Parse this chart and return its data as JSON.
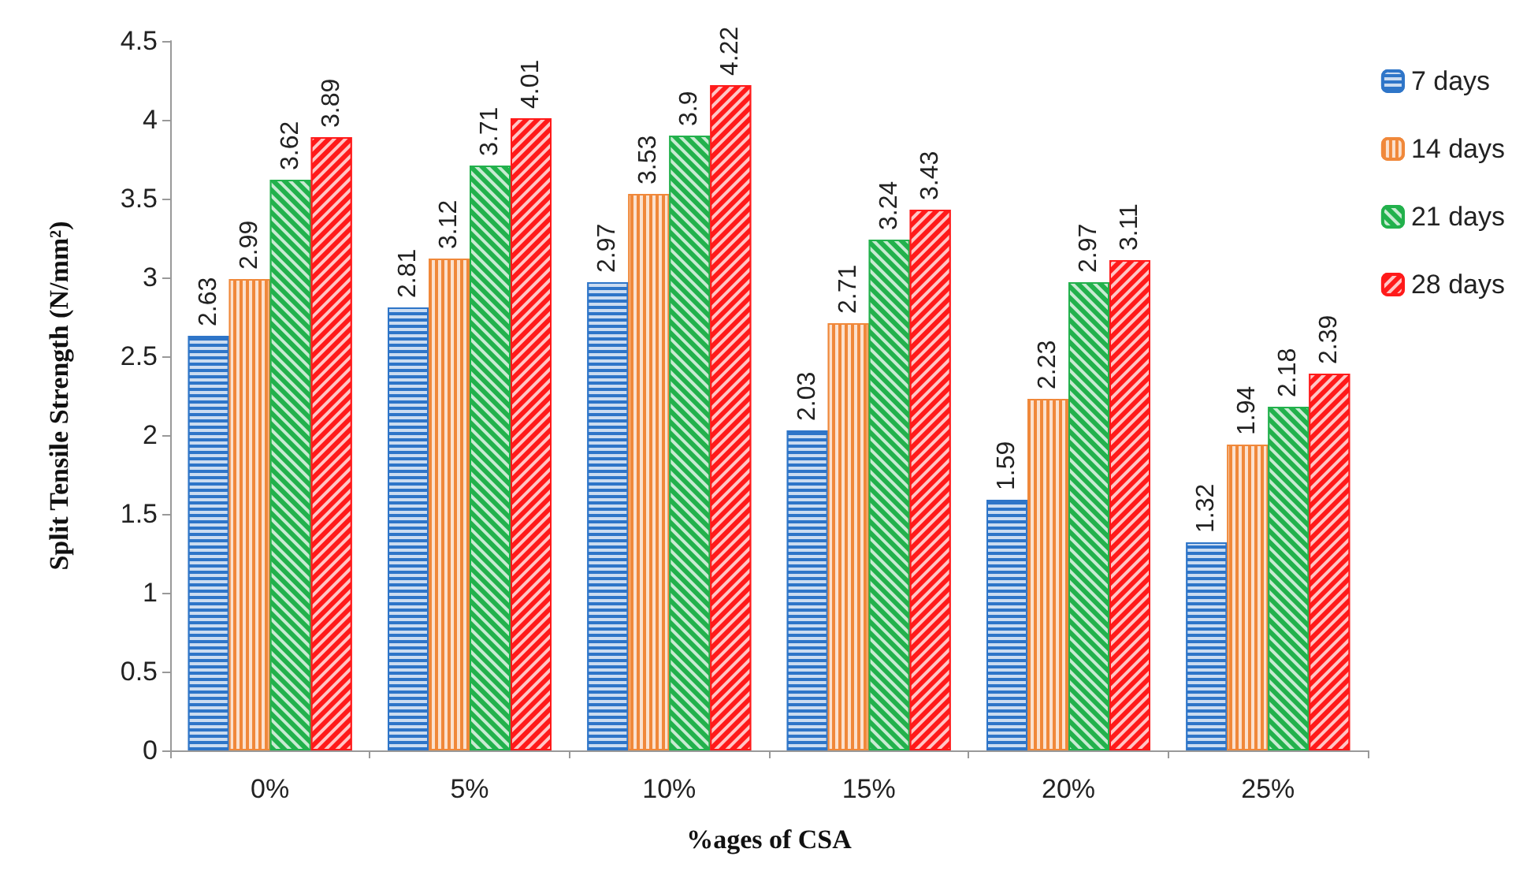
{
  "chart_data": {
    "type": "bar",
    "xlabel": "%ages of CSA",
    "ylabel": "Split Tensile Strength (N/mm²)",
    "categories": [
      "0%",
      "5%",
      "10%",
      "15%",
      "20%",
      "25%"
    ],
    "series": [
      {
        "name": "7 days",
        "color": "#2e75c8",
        "values": [
          2.63,
          2.81,
          2.97,
          2.03,
          1.59,
          1.32
        ]
      },
      {
        "name": "14 days",
        "color": "#f0883a",
        "values": [
          2.99,
          3.12,
          3.53,
          2.71,
          2.23,
          1.94
        ]
      },
      {
        "name": "21 days",
        "color": "#22b14c",
        "values": [
          3.62,
          3.71,
          3.9,
          3.24,
          2.97,
          2.18
        ]
      },
      {
        "name": "28 days",
        "color": "#ff1a1a",
        "values": [
          3.89,
          4.01,
          4.22,
          3.43,
          3.11,
          2.39
        ]
      }
    ],
    "ylim": [
      0,
      4.5
    ],
    "yticks": [
      0,
      0.5,
      1,
      1.5,
      2,
      2.5,
      3,
      3.5,
      4,
      4.5
    ],
    "grid": false,
    "legend": "right",
    "data_labels": true
  }
}
